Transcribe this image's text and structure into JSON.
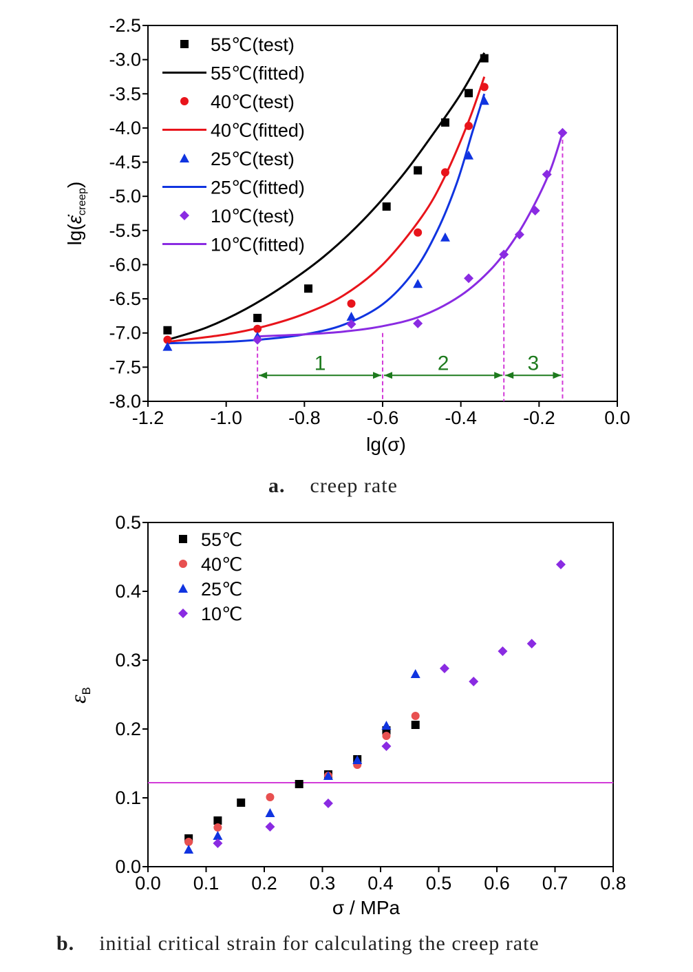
{
  "colors": {
    "55": "#000000",
    "40": "#e8141b",
    "25": "#1034e0",
    "10": "#8a2be2",
    "region_line": "#d23ad8",
    "region_arrow": "#1d7a1d",
    "threshold": "#d23ad8",
    "b_40": "#e85050"
  },
  "captions": {
    "a_letter": "a.",
    "a_text": "creep rate",
    "b_letter": "b.",
    "b_text": "initial critical strain for calculating the creep rate"
  },
  "chart_data": [
    {
      "id": "a",
      "type": "scatter",
      "xlabel": "lg(σ)",
      "ylabel_main": "lg(",
      "ylabel_symbol": "ε̇",
      "ylabel_sub": "creep",
      "ylabel_close": ")",
      "xlim": [
        -1.2,
        0.0
      ],
      "ylim": [
        -8.0,
        -2.5
      ],
      "xticks": [
        -1.2,
        -1.0,
        -0.8,
        -0.6,
        -0.4,
        -0.2,
        0.0
      ],
      "xtick_labels": [
        "-1.2",
        "-1.0",
        "-0.8",
        "-0.6",
        "-0.4",
        "-0.2",
        "0.0"
      ],
      "yticks": [
        -2.5,
        -3.0,
        -3.5,
        -4.0,
        -4.5,
        -5.0,
        -5.5,
        -6.0,
        -6.5,
        -7.0,
        -7.5,
        -8.0
      ],
      "ytick_labels": [
        "-2.5",
        "-3.0",
        "-3.5",
        "-4.0",
        "-4.5",
        "-5.0",
        "-5.5",
        "-6.0",
        "-6.5",
        "-7.0",
        "-7.5",
        "-8.0"
      ],
      "legend_position": "top-left",
      "series": [
        {
          "name": "55℃(test)",
          "key": "55",
          "kind": "points",
          "marker": "square",
          "x": [
            -1.15,
            -0.92,
            -0.79,
            -0.59,
            -0.51,
            -0.44,
            -0.38,
            -0.34
          ],
          "y": [
            -6.96,
            -6.78,
            -6.35,
            -5.15,
            -4.62,
            -3.92,
            -3.49,
            -2.98
          ]
        },
        {
          "name": "55℃(fitted)",
          "key": "55",
          "kind": "line",
          "x": [
            -1.15,
            -1.05,
            -0.95,
            -0.85,
            -0.75,
            -0.65,
            -0.55,
            -0.47,
            -0.4,
            -0.34
          ],
          "y": [
            -7.1,
            -6.92,
            -6.65,
            -6.3,
            -5.88,
            -5.35,
            -4.7,
            -4.08,
            -3.5,
            -2.9
          ]
        },
        {
          "name": "40℃(test)",
          "key": "40",
          "kind": "points",
          "marker": "circle",
          "x": [
            -1.15,
            -0.92,
            -0.68,
            -0.51,
            -0.44,
            -0.38,
            -0.34
          ],
          "y": [
            -7.1,
            -6.94,
            -6.57,
            -5.53,
            -4.65,
            -3.97,
            -3.4
          ]
        },
        {
          "name": "40℃(fitted)",
          "key": "40",
          "kind": "line",
          "x": [
            -1.15,
            -1.0,
            -0.9,
            -0.8,
            -0.7,
            -0.6,
            -0.5,
            -0.44,
            -0.38,
            -0.34
          ],
          "y": [
            -7.13,
            -7.02,
            -6.9,
            -6.72,
            -6.45,
            -6.0,
            -5.3,
            -4.7,
            -3.9,
            -3.25
          ]
        },
        {
          "name": "25℃(test)",
          "key": "25",
          "kind": "points",
          "marker": "triangle",
          "x": [
            -1.15,
            -0.92,
            -0.68,
            -0.51,
            -0.44,
            -0.38,
            -0.34
          ],
          "y": [
            -7.2,
            -7.05,
            -6.76,
            -6.28,
            -5.6,
            -4.4,
            -3.6
          ]
        },
        {
          "name": "25℃(fitted)",
          "key": "25",
          "kind": "line",
          "x": [
            -1.15,
            -1.0,
            -0.9,
            -0.8,
            -0.7,
            -0.6,
            -0.52,
            -0.46,
            -0.41,
            -0.37,
            -0.34
          ],
          "y": [
            -7.15,
            -7.13,
            -7.09,
            -7.02,
            -6.88,
            -6.58,
            -6.1,
            -5.5,
            -4.8,
            -4.05,
            -3.5
          ]
        },
        {
          "name": "10℃(test)",
          "key": "10",
          "kind": "points",
          "marker": "diamond",
          "x": [
            -0.92,
            -0.68,
            -0.51,
            -0.38,
            -0.29,
            -0.25,
            -0.21,
            -0.18,
            -0.14
          ],
          "y": [
            -7.1,
            -6.87,
            -6.86,
            -6.2,
            -5.85,
            -5.56,
            -5.21,
            -4.68,
            -4.07
          ]
        },
        {
          "name": "10℃(fitted)",
          "key": "10",
          "kind": "line",
          "x": [
            -0.92,
            -0.8,
            -0.7,
            -0.6,
            -0.5,
            -0.4,
            -0.32,
            -0.26,
            -0.21,
            -0.17,
            -0.14
          ],
          "y": [
            -7.05,
            -7.02,
            -6.98,
            -6.9,
            -6.75,
            -6.45,
            -6.05,
            -5.6,
            -5.1,
            -4.6,
            -4.07
          ]
        }
      ],
      "region_boundaries_x": [
        -0.92,
        -0.6,
        -0.29,
        -0.14
      ],
      "region_labels": [
        "1",
        "2",
        "3"
      ],
      "region_arrow_y": -7.62
    },
    {
      "id": "b",
      "type": "scatter",
      "xlabel": "σ / MPa",
      "ylabel_symbol": "ε",
      "ylabel_sub": "B",
      "xlim": [
        0.0,
        0.8
      ],
      "ylim": [
        0.0,
        0.5
      ],
      "xticks": [
        0.0,
        0.1,
        0.2,
        0.3,
        0.4,
        0.5,
        0.6,
        0.7,
        0.8
      ],
      "xtick_labels": [
        "0.0",
        "0.1",
        "0.2",
        "0.3",
        "0.4",
        "0.5",
        "0.6",
        "0.7",
        "0.8"
      ],
      "yticks": [
        0.0,
        0.1,
        0.2,
        0.3,
        0.4,
        0.5
      ],
      "ytick_labels": [
        "0.0",
        "0.1",
        "0.2",
        "0.3",
        "0.4",
        "0.5"
      ],
      "legend_position": "top-left",
      "threshold_y": 0.122,
      "series": [
        {
          "name": "55℃",
          "key": "55",
          "marker": "square",
          "x": [
            0.07,
            0.12,
            0.16,
            0.26,
            0.31,
            0.36,
            0.41,
            0.46
          ],
          "y": [
            0.041,
            0.067,
            0.093,
            0.12,
            0.134,
            0.156,
            0.198,
            0.206
          ]
        },
        {
          "name": "40℃",
          "key": "b_40",
          "marker": "circle",
          "x": [
            0.07,
            0.12,
            0.21,
            0.31,
            0.36,
            0.41,
            0.46
          ],
          "y": [
            0.036,
            0.057,
            0.101,
            0.132,
            0.148,
            0.19,
            0.219
          ]
        },
        {
          "name": "25℃",
          "key": "25",
          "marker": "triangle",
          "x": [
            0.07,
            0.12,
            0.21,
            0.31,
            0.36,
            0.41,
            0.46
          ],
          "y": [
            0.025,
            0.045,
            0.078,
            0.132,
            0.155,
            0.205,
            0.28
          ]
        },
        {
          "name": "10℃",
          "key": "10",
          "marker": "diamond",
          "x": [
            0.12,
            0.21,
            0.31,
            0.41,
            0.51,
            0.56,
            0.61,
            0.66,
            0.71
          ],
          "y": [
            0.034,
            0.058,
            0.092,
            0.175,
            0.288,
            0.269,
            0.313,
            0.324,
            0.439
          ]
        }
      ]
    }
  ]
}
